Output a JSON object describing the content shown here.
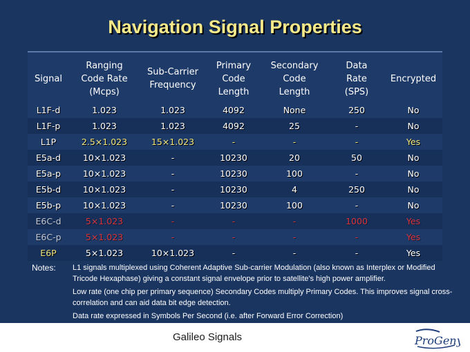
{
  "title": "Navigation Signal Properties",
  "headers": [
    "Signal",
    "Ranging\nCode Rate\n(Mcps)",
    "Sub-Carrier\nFrequency",
    "Primary\nCode\nLength",
    "Secondary\nCode\nLength",
    "Data\nRate\n(SPS)",
    "Encrypted"
  ],
  "rows": [
    {
      "cells": [
        "L1F-d",
        "1.023",
        "1.023",
        "4092",
        "None",
        "250",
        "No"
      ]
    },
    {
      "cells": [
        "L1F-p",
        "1.023",
        "1.023",
        "4092",
        "25",
        "-",
        "No"
      ]
    },
    {
      "cells": [
        "L1P",
        "2.5×1.023",
        "15×1.023",
        "-",
        "-",
        "-",
        "Yes"
      ]
    },
    {
      "cells": [
        "E5a-d",
        "10×1.023",
        "-",
        "10230",
        "20",
        "50",
        "No"
      ]
    },
    {
      "cells": [
        "E5a-p",
        "10×1.023",
        "-",
        "10230",
        "100",
        "-",
        "No"
      ]
    },
    {
      "cells": [
        "E5b-d",
        "10×1.023",
        "-",
        "10230",
        "4",
        "250",
        "No"
      ]
    },
    {
      "cells": [
        "E5b-p",
        "10×1.023",
        "-",
        "10230",
        "100",
        "-",
        "No"
      ]
    },
    {
      "cells": [
        "E6C-d",
        "5×1.023",
        "-",
        "-",
        "-",
        "1000",
        "Yes"
      ]
    },
    {
      "cells": [
        "E6C-p",
        "5×1.023",
        "-",
        "-",
        "-",
        "-",
        "Yes"
      ]
    },
    {
      "cells": [
        "E6P",
        "5×1.023",
        "10×1.023",
        "-",
        "-",
        "-",
        "Yes"
      ]
    }
  ],
  "notes_label": "Notes:",
  "notes": [
    "L1 signals multiplexed using Coherent Adaptive Sub-carrier Modulation (also known as Interplex or Modified Tricode Hexaphase) giving a constant signal envelope prior to satellite's high power amplifier.",
    "Low rate (one chip per primary sequence) Secondary Codes multiply Primary Codes. This improves signal cross-correlation and can aid data bit edge detection.",
    "Data rate expressed in Symbols Per Second (i.e. after Forward Error Correction)"
  ],
  "footer": "Galileo Signals",
  "logo_text": "ProGeny",
  "colors": {
    "background": "#1b3561",
    "title": "#f5e98a",
    "highlight": "#f3e981",
    "classified": "#d9333a"
  }
}
